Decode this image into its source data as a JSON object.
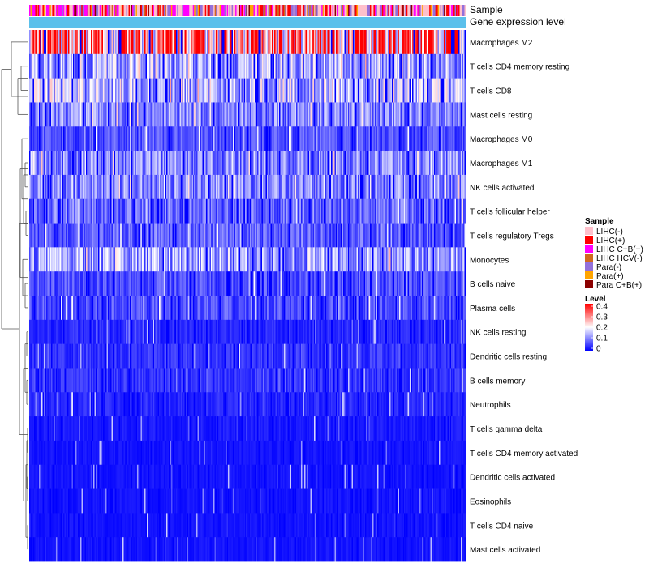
{
  "chart_data": {
    "type": "heatmap",
    "annotation_tracks": [
      "Sample",
      "Gene expression level"
    ],
    "rows": [
      "Macrophages M2",
      "T cells CD4 memory resting",
      "T cells CD8",
      "Mast cells resting",
      "Macrophages M0",
      "Macrophages M1",
      "NK cells activated",
      "T cells follicular helper",
      "T cells regulatory  Tregs",
      "Monocytes",
      "B cells naive",
      "Plasma cells",
      "NK cells resting",
      "Dendritic cells resting",
      "B cells memory",
      "Neutrophils",
      "T cells gamma delta",
      "T cells CD4 memory activated",
      "Dendritic cells activated",
      "Eosinophils",
      "T cells CD4 naive",
      "Mast cells activated"
    ],
    "row_mean_level": [
      0.3,
      0.13,
      0.14,
      0.1,
      0.06,
      0.1,
      0.1,
      0.08,
      0.07,
      0.12,
      0.06,
      0.06,
      0.03,
      0.04,
      0.04,
      0.03,
      0.02,
      0.015,
      0.015,
      0.015,
      0.015,
      0.015
    ],
    "sample_legend": {
      "title": "Sample",
      "entries": [
        {
          "label": "LIHC(-)",
          "color": "#ffc0cb"
        },
        {
          "label": "LIHC(+)",
          "color": "#ff0000"
        },
        {
          "label": "LIHC C+B(+)",
          "color": "#ff00ff"
        },
        {
          "label": "LIHC HCV(-)",
          "color": "#d2691e"
        },
        {
          "label": "Para(-)",
          "color": "#9370db"
        },
        {
          "label": "Para(+)",
          "color": "#ffa500"
        },
        {
          "label": "Para C+B(+)",
          "color": "#8b0000"
        }
      ]
    },
    "expression_track_color": "#5bc0eb",
    "level_legend": {
      "title": "Level",
      "ticks": [
        "0.4",
        "0.3",
        "0.2",
        "0.1",
        "0"
      ],
      "range": [
        0,
        0.4
      ],
      "colors": [
        "#0000ff",
        "#ffffff",
        "#ff0000"
      ]
    },
    "row_dendrogram": true
  }
}
